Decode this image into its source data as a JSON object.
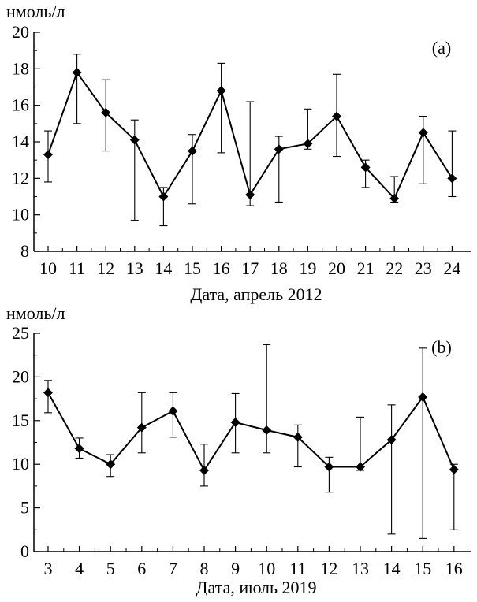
{
  "chart_data": [
    {
      "type": "line",
      "panel_label": "(a)",
      "ylabel": "нмоль/л",
      "xlabel": "Дата, апрель 2012",
      "ylim": [
        8,
        20
      ],
      "yticks": [
        8,
        10,
        12,
        14,
        16,
        18,
        20
      ],
      "x": [
        10,
        11,
        12,
        13,
        14,
        15,
        16,
        17,
        18,
        19,
        20,
        21,
        22,
        23,
        24
      ],
      "xtick_labels": [
        "10",
        "11",
        "12",
        "13",
        "14",
        "15",
        "16",
        "17",
        "18",
        "19",
        "20",
        "21",
        "22",
        "23",
        "24"
      ],
      "values": [
        13.3,
        17.8,
        15.6,
        14.1,
        11.0,
        13.5,
        16.8,
        11.1,
        13.6,
        13.9,
        15.4,
        12.6,
        10.9,
        14.5,
        12.0
      ],
      "err_low": [
        11.8,
        15.0,
        13.5,
        9.7,
        9.4,
        10.6,
        13.4,
        10.5,
        10.7,
        13.6,
        13.2,
        11.5,
        10.7,
        11.7,
        11.0
      ],
      "err_high": [
        14.6,
        18.8,
        17.4,
        15.2,
        11.5,
        14.4,
        18.3,
        16.2,
        14.3,
        15.8,
        17.7,
        13.0,
        12.1,
        15.4,
        14.6
      ]
    },
    {
      "type": "line",
      "panel_label": "(b)",
      "ylabel": "нмоль/л",
      "xlabel": "Дата, июль 2019",
      "ylim": [
        0,
        25
      ],
      "yticks": [
        0,
        5,
        10,
        15,
        20,
        25
      ],
      "x": [
        3,
        4,
        5,
        6,
        7,
        8,
        9,
        10,
        11,
        12,
        13,
        14,
        15,
        16
      ],
      "xtick_labels": [
        "3",
        "4",
        "5",
        "6",
        "7",
        "8",
        "9",
        "10",
        "11",
        "12",
        "13",
        "14",
        "15",
        "16"
      ],
      "values": [
        18.2,
        11.8,
        10.0,
        14.2,
        16.1,
        9.3,
        14.8,
        13.9,
        13.1,
        9.7,
        9.7,
        12.8,
        17.7,
        9.4
      ],
      "err_low": [
        15.9,
        10.7,
        8.6,
        11.3,
        13.1,
        7.5,
        11.3,
        11.3,
        9.7,
        6.8,
        9.3,
        2.0,
        1.5,
        2.5
      ],
      "err_high": [
        19.6,
        13.0,
        11.1,
        18.2,
        18.2,
        12.3,
        18.1,
        23.7,
        14.5,
        10.8,
        15.4,
        16.8,
        23.3,
        10.0
      ]
    }
  ]
}
